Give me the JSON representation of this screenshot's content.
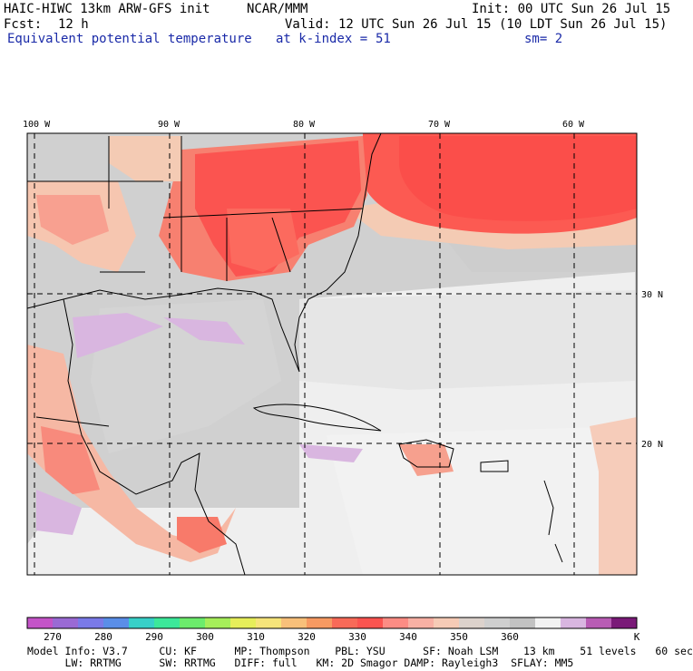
{
  "header": {
    "model": "HAIC-HIWC 13km ARW-GFS init",
    "org": "NCAR/MMM",
    "init": "Init: 00 UTC Sun 26 Jul 15",
    "fcst_label": "Fcst:",
    "fcst_value": "12 h",
    "valid": "Valid: 12 UTC Sun 26 Jul 15 (10 LDT Sun 26 Jul 15)",
    "field": "Equivalent potential temperature",
    "level": "at k-index =",
    "level_value": "51",
    "smooth": "sm= 2"
  },
  "map": {
    "lon_labels": [
      "100 W",
      "90 W",
      "80 W",
      "70 W",
      "60 W"
    ],
    "lat_labels": [
      "30 N",
      "20 N"
    ],
    "grid": "dashed"
  },
  "colorbar": {
    "unit": "K",
    "labels": [
      "270",
      "280",
      "290",
      "300",
      "310",
      "320",
      "330",
      "340",
      "350",
      "360"
    ],
    "colors": [
      "#c454c8",
      "#9a6ad4",
      "#7a7ae8",
      "#5a8ee8",
      "#38d0c8",
      "#3ce89a",
      "#6cec6c",
      "#a6ee5a",
      "#e6ee5a",
      "#f6e47a",
      "#f8c07a",
      "#f79a62",
      "#f86a58",
      "#fb5450",
      "#fc8c84",
      "#f8b0a4",
      "#f6cbb6",
      "#dcd2cc",
      "#cfcfcf",
      "#c2c2c2",
      "#f2f2f2",
      "#d8b6e0",
      "#b85cb4",
      "#7a1a78"
    ]
  },
  "footer": {
    "line1": "Model Info: V3.7     CU: KF      MP: Thompson    PBL: YSU      SF: Noah LSM    13 km    51 levels   60 sec",
    "line2": "      LW: RRTMG      SW: RRTMG   DIFF: full   KM: 2D Smagor DAMP: Rayleigh3  SFLAY: MM5"
  }
}
